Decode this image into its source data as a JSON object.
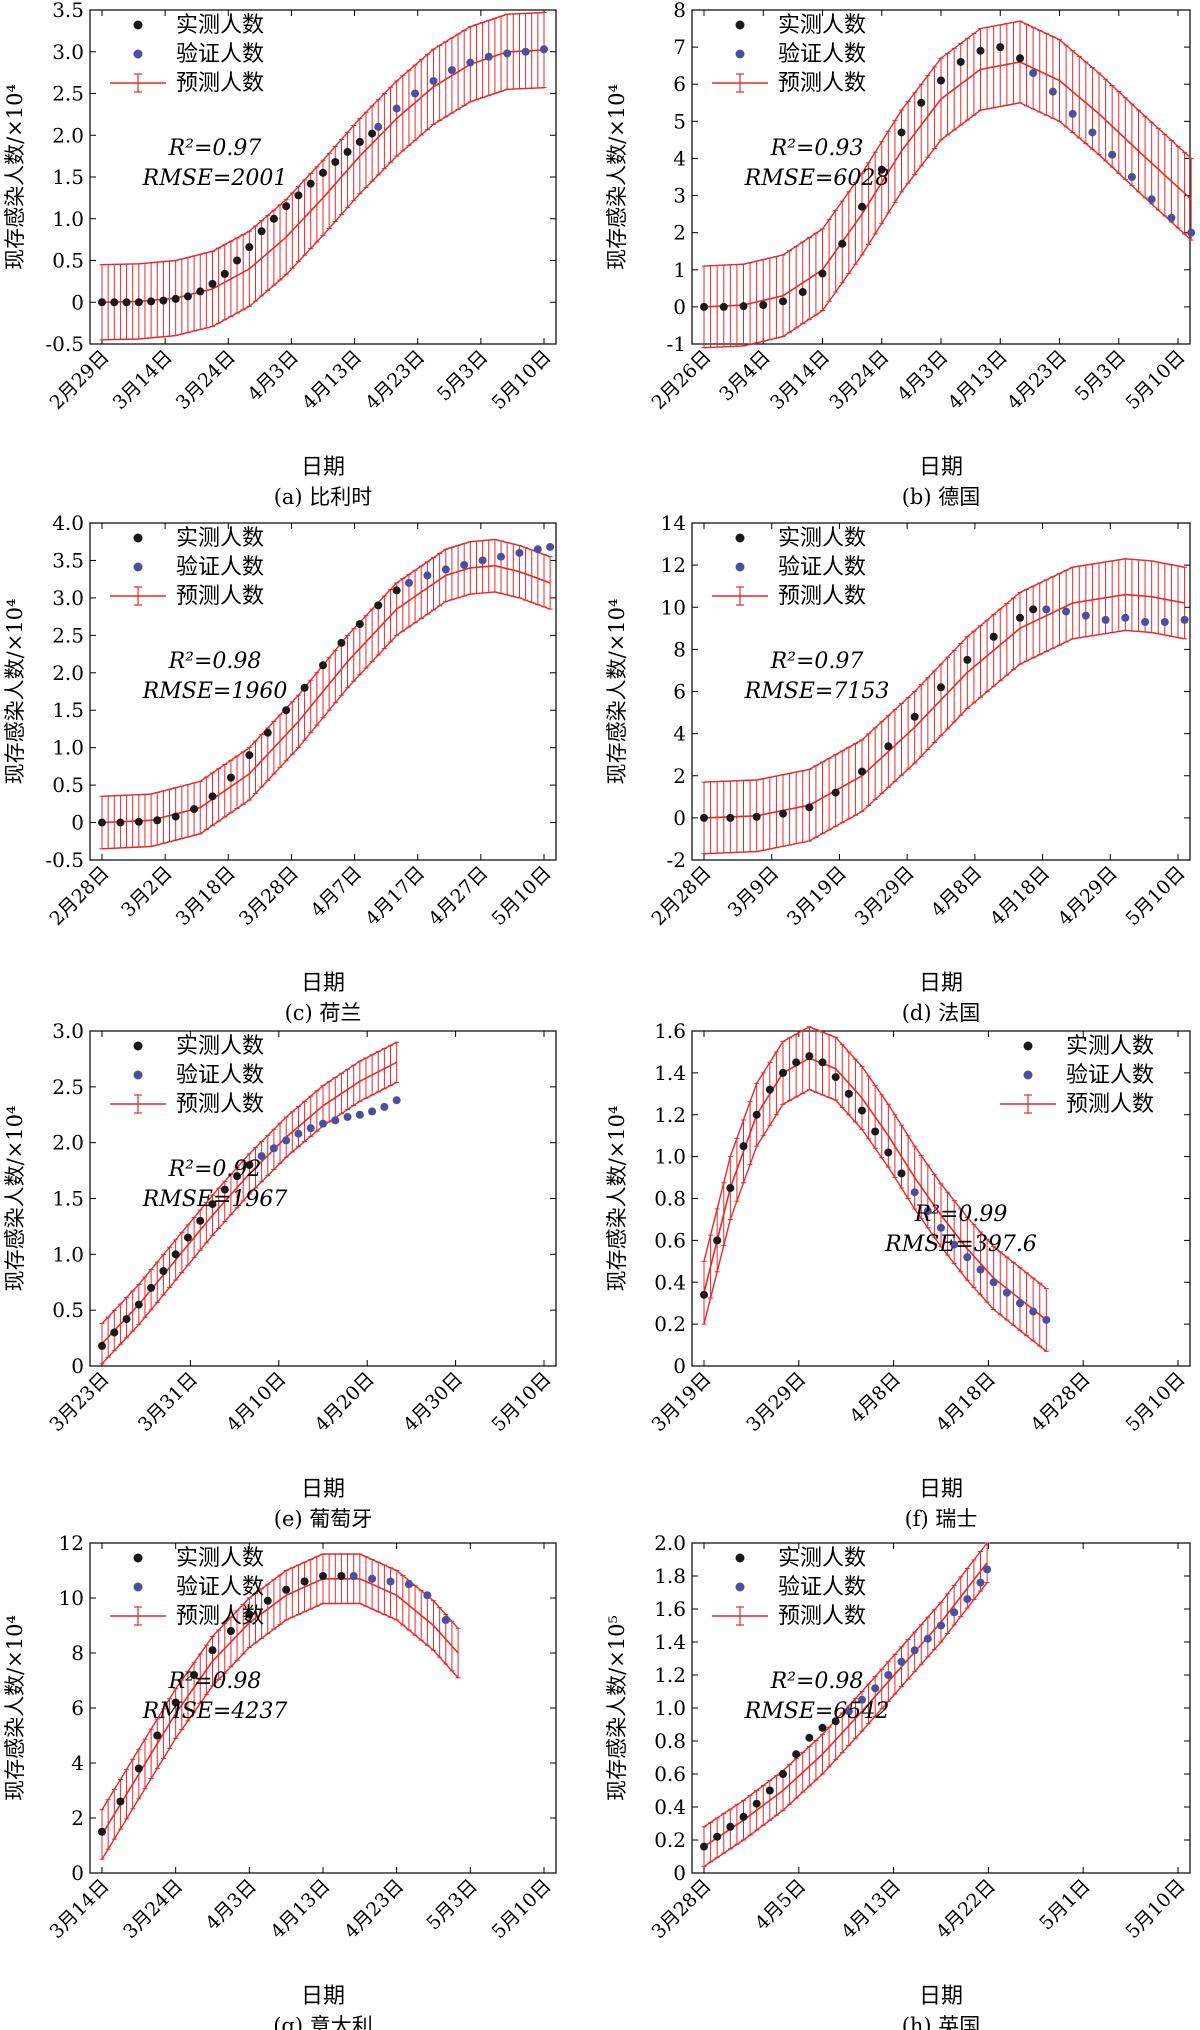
{
  "legend_labels": {
    "observed": "实测人数",
    "validation": "验证人数",
    "predicted": "预测人数"
  },
  "colors": {
    "observed": "#1a1a1a",
    "validation": "#4a4f9e",
    "predicted": "#e8282b"
  },
  "chart_data": [
    {
      "type": "line",
      "panel": "(a) 比利时",
      "xlabel": "日期",
      "ylabel": "现存感染人数/×10⁴",
      "ylim": [
        -0.5,
        3.5
      ],
      "yticks": [
        "-0.5",
        "0",
        "0.5",
        "1.0",
        "1.5",
        "2.0",
        "2.5",
        "3.0",
        "3.5"
      ],
      "xticks": [
        "2月29日",
        "3月14日",
        "3月24日",
        "4月3日",
        "4月13日",
        "4月23日",
        "5月3日",
        "5月10日"
      ],
      "legend_position": "top-left",
      "r2_label": "R²=0.97",
      "rmse_label": "RMSE=2001",
      "series": [
        {
          "name": "实测人数",
          "x": [
            0,
            2,
            4,
            6,
            8,
            10,
            12,
            14,
            16,
            18,
            20,
            22,
            24,
            26,
            28,
            30,
            32,
            34,
            36,
            38,
            40,
            42,
            44
          ],
          "y": [
            0,
            0,
            0,
            0,
            0.01,
            0.02,
            0.04,
            0.07,
            0.13,
            0.22,
            0.34,
            0.5,
            0.66,
            0.85,
            1.0,
            1.15,
            1.28,
            1.42,
            1.55,
            1.68,
            1.8,
            1.92,
            2.02
          ]
        },
        {
          "name": "验证人数",
          "x": [
            45,
            48,
            51,
            54,
            57,
            60,
            63,
            66,
            69,
            72
          ],
          "y": [
            2.1,
            2.32,
            2.5,
            2.65,
            2.78,
            2.87,
            2.94,
            2.98,
            3.0,
            3.03
          ]
        },
        {
          "name": "预测人数",
          "x": [
            0,
            6,
            12,
            18,
            24,
            30,
            36,
            42,
            48,
            54,
            60,
            66,
            72
          ],
          "y": [
            0,
            0.01,
            0.05,
            0.16,
            0.4,
            0.78,
            1.25,
            1.75,
            2.2,
            2.58,
            2.85,
            3.0,
            3.02
          ],
          "error": 0.45
        }
      ]
    },
    {
      "type": "line",
      "panel": "(b) 德国",
      "xlabel": "日期",
      "ylabel": "现存感染人数/×10⁴",
      "ylim": [
        -1,
        8
      ],
      "yticks": [
        "-1",
        "0",
        "1",
        "2",
        "3",
        "4",
        "5",
        "6",
        "7",
        "8"
      ],
      "xticks": [
        "2月26日",
        "3月4日",
        "3月14日",
        "3月24日",
        "4月3日",
        "4月13日",
        "4月23日",
        "5月3日",
        "5月10日"
      ],
      "legend_position": "top-left",
      "r2_label": "R²=0.93",
      "rmse_label": "RMSE=6028",
      "series": [
        {
          "name": "实测人数",
          "x": [
            0,
            3,
            6,
            9,
            12,
            15,
            18,
            21,
            24,
            27,
            30,
            33,
            36,
            39,
            42,
            45,
            48
          ],
          "y": [
            0,
            0,
            0.02,
            0.05,
            0.15,
            0.4,
            0.9,
            1.7,
            2.7,
            3.7,
            4.7,
            5.5,
            6.1,
            6.6,
            6.9,
            7.0,
            6.7
          ]
        },
        {
          "name": "验证人数",
          "x": [
            50,
            53,
            56,
            59,
            62,
            65,
            68,
            71,
            74
          ],
          "y": [
            6.3,
            5.8,
            5.2,
            4.7,
            4.1,
            3.5,
            2.9,
            2.4,
            2.0
          ]
        },
        {
          "name": "预测人数",
          "x": [
            0,
            6,
            12,
            18,
            24,
            30,
            36,
            42,
            48,
            54,
            60,
            66,
            74
          ],
          "y": [
            0,
            0.05,
            0.3,
            1.0,
            2.5,
            4.2,
            5.6,
            6.4,
            6.6,
            6.1,
            5.2,
            4.2,
            2.9
          ],
          "error": 1.1
        }
      ]
    },
    {
      "type": "line",
      "panel": "(c) 荷兰",
      "xlabel": "日期",
      "ylabel": "现存感染人数/×10⁴",
      "ylim": [
        -0.5,
        4.0
      ],
      "yticks": [
        "-0.5",
        "0",
        "0.5",
        "1.0",
        "1.5",
        "2.0",
        "2.5",
        "3.0",
        "3.5",
        "4.0"
      ],
      "xticks": [
        "2月28日",
        "3月2日",
        "3月18日",
        "3月28日",
        "4月7日",
        "4月17日",
        "4月27日",
        "5月10日"
      ],
      "legend_position": "top-left",
      "r2_label": "R²=0.98",
      "rmse_label": "RMSE=1960",
      "series": [
        {
          "name": "实测人数",
          "x": [
            0,
            3,
            6,
            9,
            12,
            15,
            18,
            21,
            24,
            27,
            30,
            33,
            36,
            39,
            42,
            45,
            48
          ],
          "y": [
            0,
            0,
            0.01,
            0.03,
            0.08,
            0.18,
            0.35,
            0.6,
            0.9,
            1.2,
            1.5,
            1.8,
            2.1,
            2.4,
            2.65,
            2.9,
            3.1
          ]
        },
        {
          "name": "验证人数",
          "x": [
            50,
            53,
            56,
            59,
            62,
            65,
            68,
            71,
            73
          ],
          "y": [
            3.2,
            3.3,
            3.38,
            3.44,
            3.5,
            3.55,
            3.6,
            3.65,
            3.68
          ]
        },
        {
          "name": "预测人数",
          "x": [
            0,
            8,
            16,
            24,
            32,
            40,
            48,
            56,
            60,
            64,
            68,
            73
          ],
          "y": [
            0,
            0.03,
            0.2,
            0.65,
            1.35,
            2.15,
            2.85,
            3.3,
            3.4,
            3.43,
            3.35,
            3.2
          ],
          "error": 0.35
        }
      ]
    },
    {
      "type": "line",
      "panel": "(d) 法国",
      "xlabel": "日期",
      "ylabel": "现存感染人数/×10⁴",
      "ylim": [
        -2,
        14
      ],
      "yticks": [
        "-2",
        "0",
        "2",
        "4",
        "6",
        "8",
        "10",
        "12",
        "14"
      ],
      "xticks": [
        "2月28日",
        "3月9日",
        "3月19日",
        "3月29日",
        "4月8日",
        "4月18日",
        "4月29日",
        "5月10日"
      ],
      "legend_position": "top-left",
      "r2_label": "R²=0.97",
      "rmse_label": "RMSE=7153",
      "series": [
        {
          "name": "实测人数",
          "x": [
            0,
            4,
            8,
            12,
            16,
            20,
            24,
            28,
            32,
            36,
            40,
            44,
            48,
            50
          ],
          "y": [
            0,
            0,
            0.05,
            0.2,
            0.5,
            1.2,
            2.2,
            3.4,
            4.8,
            6.2,
            7.5,
            8.6,
            9.5,
            9.9
          ]
        },
        {
          "name": "验证人数",
          "x": [
            52,
            55,
            58,
            61,
            64,
            67,
            70,
            73
          ],
          "y": [
            9.9,
            9.8,
            9.6,
            9.4,
            9.5,
            9.3,
            9.3,
            9.4
          ]
        },
        {
          "name": "预测人数",
          "x": [
            0,
            8,
            16,
            24,
            32,
            40,
            48,
            56,
            64,
            68,
            73
          ],
          "y": [
            0,
            0.1,
            0.6,
            2.0,
            4.3,
            6.9,
            9.0,
            10.2,
            10.6,
            10.5,
            10.2
          ],
          "error": 1.7
        }
      ]
    },
    {
      "type": "line",
      "panel": "(e) 葡萄牙",
      "xlabel": "日期",
      "ylabel": "现存感染人数/×10⁴",
      "ylim": [
        0,
        3.0
      ],
      "yticks": [
        "0",
        "0.5",
        "1.0",
        "1.5",
        "2.0",
        "2.5",
        "3.0"
      ],
      "xticks": [
        "3月23日",
        "3月31日",
        "4月10日",
        "4月20日",
        "4月30日",
        "5月10日"
      ],
      "legend_position": "top-left",
      "r2_label": "R²=0.92",
      "rmse_label": "RMSE=1967",
      "series": [
        {
          "name": "实测人数",
          "x": [
            0,
            2,
            4,
            6,
            8,
            10,
            12,
            14,
            16,
            18,
            20,
            22,
            24
          ],
          "y": [
            0.18,
            0.3,
            0.42,
            0.55,
            0.7,
            0.85,
            1.0,
            1.15,
            1.3,
            1.45,
            1.58,
            1.7,
            1.8
          ]
        },
        {
          "name": "验证人数",
          "x": [
            26,
            28,
            30,
            32,
            34,
            36,
            38,
            40,
            42,
            44,
            46,
            48
          ],
          "y": [
            1.88,
            1.95,
            2.02,
            2.08,
            2.13,
            2.17,
            2.2,
            2.23,
            2.25,
            2.28,
            2.32,
            2.38
          ]
        },
        {
          "name": "预测人数",
          "x": [
            0,
            6,
            12,
            18,
            24,
            30,
            36,
            42,
            48
          ],
          "y": [
            0.2,
            0.55,
            0.95,
            1.35,
            1.72,
            2.05,
            2.33,
            2.55,
            2.72
          ],
          "error": 0.18
        }
      ]
    },
    {
      "type": "line",
      "panel": "(f) 瑞士",
      "xlabel": "日期",
      "ylabel": "现存感染人数/×10⁴",
      "ylim": [
        0,
        1.6
      ],
      "yticks": [
        "0",
        "0.2",
        "0.4",
        "0.6",
        "0.8",
        "1.0",
        "1.2",
        "1.4",
        "1.6"
      ],
      "xticks": [
        "3月19日",
        "3月29日",
        "4月8日",
        "4月18日",
        "4月28日",
        "5月10日"
      ],
      "legend_position": "top-right",
      "r2_label": "R²=0.99",
      "rmse_label": "RMSE=397.6",
      "series": [
        {
          "name": "实测人数",
          "x": [
            0,
            2,
            4,
            6,
            8,
            10,
            12,
            14,
            16,
            18,
            20,
            22,
            24,
            26,
            28,
            30
          ],
          "y": [
            0.34,
            0.6,
            0.85,
            1.05,
            1.2,
            1.32,
            1.4,
            1.45,
            1.48,
            1.45,
            1.38,
            1.3,
            1.22,
            1.12,
            1.02,
            0.92
          ]
        },
        {
          "name": "验证人数",
          "x": [
            32,
            34,
            36,
            38,
            40,
            42,
            44,
            46,
            48,
            50,
            52
          ],
          "y": [
            0.83,
            0.74,
            0.66,
            0.58,
            0.52,
            0.46,
            0.4,
            0.35,
            0.3,
            0.26,
            0.22
          ]
        },
        {
          "name": "预测人数",
          "x": [
            0,
            4,
            8,
            12,
            16,
            20,
            24,
            28,
            32,
            36,
            40,
            44,
            48,
            52
          ],
          "y": [
            0.35,
            0.85,
            1.2,
            1.4,
            1.47,
            1.42,
            1.28,
            1.1,
            0.9,
            0.72,
            0.56,
            0.42,
            0.32,
            0.22
          ],
          "error": 0.15
        }
      ]
    },
    {
      "type": "line",
      "panel": "(g) 意大利",
      "xlabel": "日期",
      "ylabel": "现存感染人数/×10⁴",
      "ylim": [
        0,
        12
      ],
      "yticks": [
        "0",
        "2",
        "4",
        "6",
        "8",
        "10",
        "12"
      ],
      "xticks": [
        "3月14日",
        "3月24日",
        "4月3日",
        "4月13日",
        "4月23日",
        "5月3日",
        "5月10日"
      ],
      "legend_position": "top-left",
      "r2_label": "R²=0.98",
      "rmse_label": "RMSE=4237",
      "series": [
        {
          "name": "实测人数",
          "x": [
            0,
            3,
            6,
            9,
            12,
            15,
            18,
            21,
            24,
            27,
            30,
            33,
            36,
            39
          ],
          "y": [
            1.5,
            2.6,
            3.8,
            5.0,
            6.2,
            7.2,
            8.1,
            8.8,
            9.4,
            9.9,
            10.3,
            10.6,
            10.8,
            10.8
          ]
        },
        {
          "name": "验证人数",
          "x": [
            41,
            44,
            47,
            50,
            53,
            56
          ],
          "y": [
            10.8,
            10.7,
            10.6,
            10.5,
            10.1,
            9.2
          ]
        },
        {
          "name": "预测人数",
          "x": [
            0,
            6,
            12,
            18,
            24,
            30,
            36,
            42,
            48,
            54,
            58
          ],
          "y": [
            1.4,
            3.6,
            5.8,
            7.7,
            9.1,
            10.1,
            10.7,
            10.7,
            10.1,
            9.0,
            8.0
          ],
          "error": 0.9
        }
      ]
    },
    {
      "type": "line",
      "panel": "(h) 英国",
      "xlabel": "日期",
      "ylabel": "现存感染人数/×10⁵",
      "ylim": [
        0,
        2.0
      ],
      "yticks": [
        "0",
        "0.2",
        "0.4",
        "0.6",
        "0.8",
        "1.0",
        "1.2",
        "1.4",
        "1.6",
        "1.8",
        "2.0"
      ],
      "xticks": [
        "3月28日",
        "4月5日",
        "4月13日",
        "4月22日",
        "5月1日",
        "5月10日"
      ],
      "legend_position": "top-left",
      "r2_label": "R²=0.98",
      "rmse_label": "RMSE=6542",
      "series": [
        {
          "name": "实测人数",
          "x": [
            0,
            2,
            4,
            6,
            8,
            10,
            12,
            14,
            16,
            18,
            20
          ],
          "y": [
            0.16,
            0.22,
            0.28,
            0.34,
            0.42,
            0.5,
            0.6,
            0.72,
            0.82,
            0.88,
            0.92
          ]
        },
        {
          "name": "验证人数",
          "x": [
            22,
            24,
            26,
            28,
            30,
            32,
            34,
            36,
            38,
            40,
            42,
            43
          ],
          "y": [
            0.98,
            1.05,
            1.12,
            1.2,
            1.28,
            1.35,
            1.42,
            1.5,
            1.58,
            1.66,
            1.76,
            1.84
          ]
        },
        {
          "name": "预测人数",
          "x": [
            0,
            6,
            12,
            18,
            24,
            30,
            36,
            43
          ],
          "y": [
            0.16,
            0.32,
            0.5,
            0.72,
            0.98,
            1.25,
            1.52,
            1.88
          ],
          "error": 0.12
        }
      ]
    }
  ]
}
